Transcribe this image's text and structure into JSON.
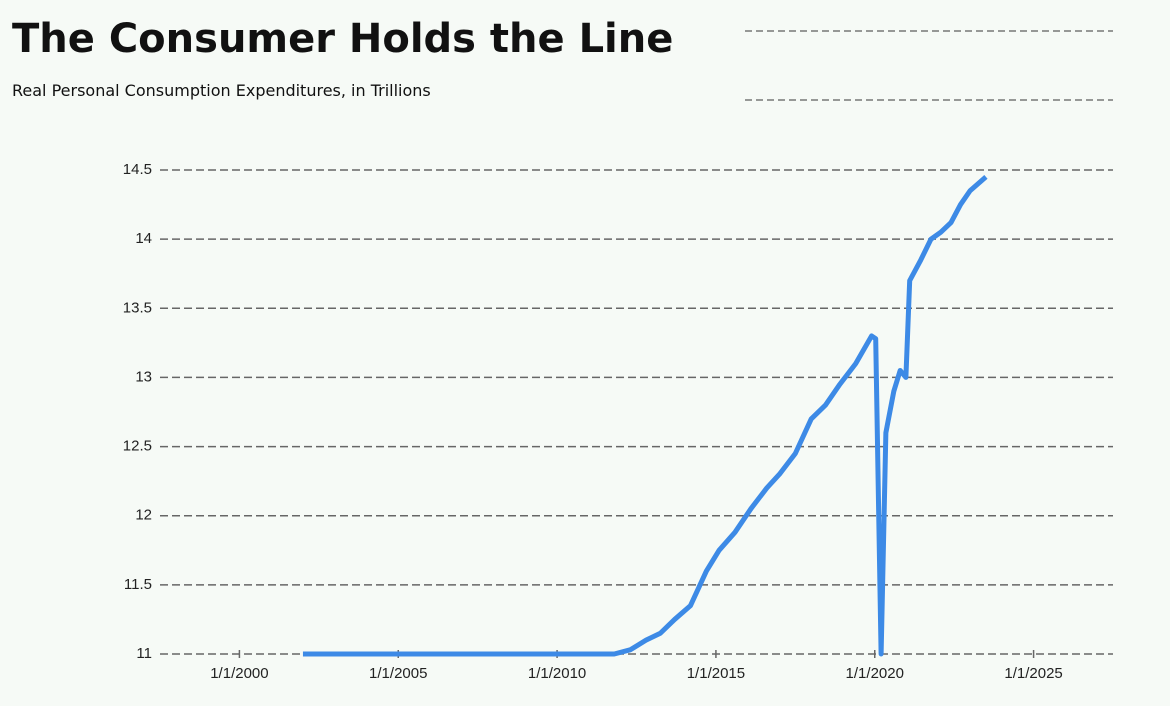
{
  "chart_data": {
    "type": "line",
    "title": "The Consumer Holds the Line",
    "subtitle": "Real Personal Consumption Expenditures, in Trillions",
    "x": [
      2002.0,
      2011.8,
      2012.3,
      2012.8,
      2013.25,
      2013.7,
      2014.2,
      2014.7,
      2015.1,
      2015.6,
      2016.1,
      2016.6,
      2017.0,
      2017.5,
      2018.0,
      2018.45,
      2018.9,
      2019.4,
      2019.9,
      2020.03,
      2020.2,
      2020.35,
      2020.6,
      2020.8,
      2020.98,
      2021.1,
      2021.45,
      2021.77,
      2022.08,
      2022.4,
      2022.7,
      2023.0,
      2023.5
    ],
    "series": [
      {
        "color": "#3d8ae6",
        "values": [
          11.0,
          11.0,
          11.03,
          11.1,
          11.15,
          11.25,
          11.35,
          11.6,
          11.75,
          11.88,
          12.05,
          12.2,
          12.3,
          12.45,
          12.7,
          12.8,
          12.95,
          13.1,
          13.3,
          13.28,
          11.0,
          12.6,
          12.9,
          13.05,
          13.0,
          13.7,
          13.85,
          14.0,
          14.05,
          14.12,
          14.25,
          14.35,
          14.45
        ]
      }
    ],
    "xlim": [
      1997.5,
      2027.5
    ],
    "xticks": [
      {
        "value": 2000,
        "label": "1/1/2000"
      },
      {
        "value": 2005,
        "label": "1/1/2005"
      },
      {
        "value": 2010,
        "label": "1/1/2010"
      },
      {
        "value": 2015,
        "label": "1/1/2015"
      },
      {
        "value": 2020,
        "label": "1/1/2020"
      },
      {
        "value": 2025,
        "label": "1/1/2025"
      }
    ],
    "ylim": [
      11,
      14.5
    ],
    "yticks": [
      11,
      11.5,
      12,
      12.5,
      13,
      13.5,
      14,
      14.5
    ],
    "grid": true
  }
}
